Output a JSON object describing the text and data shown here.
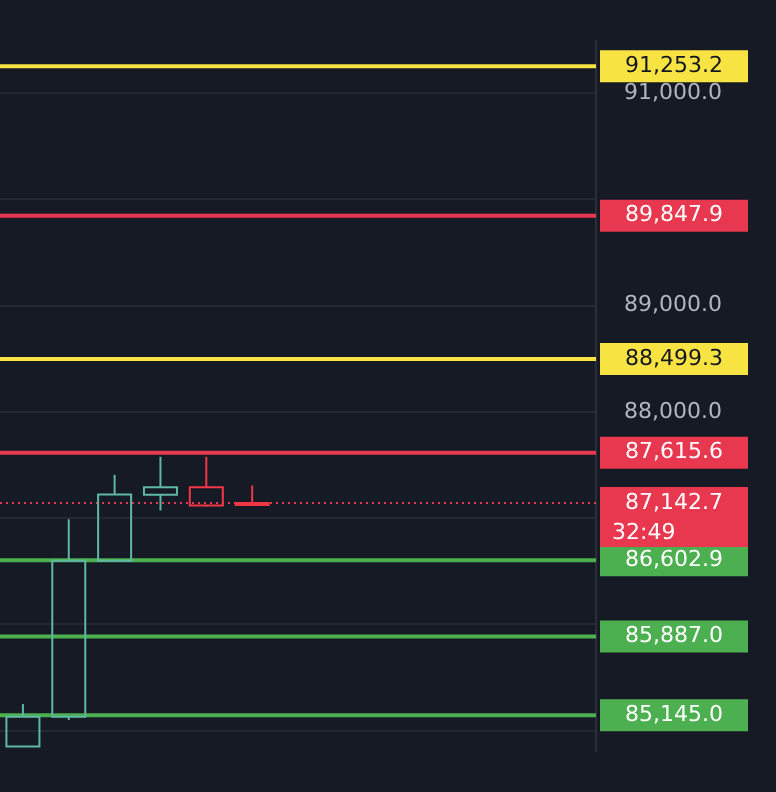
{
  "chart_data": {
    "type": "candlestick",
    "categories": [
      null,
      null,
      null,
      null,
      null,
      null,
      null,
      null,
      null,
      null,
      null,
      null,
      null
    ],
    "ohlc": [
      [
        84850,
        85250,
        84850,
        85130
      ],
      [
        85130,
        86990,
        85100,
        86600
      ],
      [
        86600,
        87408,
        86600,
        87223
      ],
      [
        87220,
        87577,
        87071,
        87290
      ],
      [
        87290,
        87577,
        87110,
        87120
      ],
      [
        87130,
        87307,
        87120,
        87142.7
      ],
      null,
      null,
      null,
      null,
      null,
      null,
      null
    ],
    "colors": [
      "#5fb7a5",
      "#5fb7a5",
      "#5fb7a5",
      "#5fb7a5",
      "#f23645",
      "#f23645",
      null,
      null,
      null,
      null,
      null,
      null,
      null
    ],
    "ylim": [
      84810,
      91490
    ],
    "yticks": [
      {
        "value": 85000,
        "label": null
      },
      {
        "value": 86000,
        "label": null
      },
      {
        "value": 87000,
        "label": null
      },
      {
        "value": 88000,
        "label": "88,000.0"
      },
      {
        "value": 89000,
        "label": "89,000.0"
      },
      {
        "value": 90000,
        "label": null
      },
      {
        "value": 91000,
        "label": "91,000.0"
      }
    ],
    "grid": "y",
    "tick_labels": "y",
    "ref_lines": [
      {
        "axis": "y",
        "value": 91253.2,
        "label": "91,253.2",
        "color": "#f7e341"
      },
      {
        "axis": "y",
        "value": 89847.9,
        "label": "89,847.9",
        "color": "#e8384f"
      },
      {
        "axis": "y",
        "value": 88499.3,
        "label": "88,499.3",
        "color": "#f7e341"
      },
      {
        "axis": "y",
        "value": 87615.6,
        "label": "87,615.6",
        "color": "#e8384f"
      },
      {
        "axis": "y",
        "value": 87142.7,
        "label": "87,142.7",
        "color": "#e8384f",
        "line_style": "dotted"
      },
      {
        "axis": "y",
        "value": 86602.9,
        "label": "86,602.9",
        "color": "#4caf50"
      },
      {
        "axis": "y",
        "value": 85887.0,
        "label": "85,887.0",
        "color": "#4caf50"
      },
      {
        "axis": "y",
        "value": 85145.0,
        "label": "85,145.0",
        "color": "#4caf50"
      }
    ],
    "annotations": [
      "32:49"
    ]
  }
}
